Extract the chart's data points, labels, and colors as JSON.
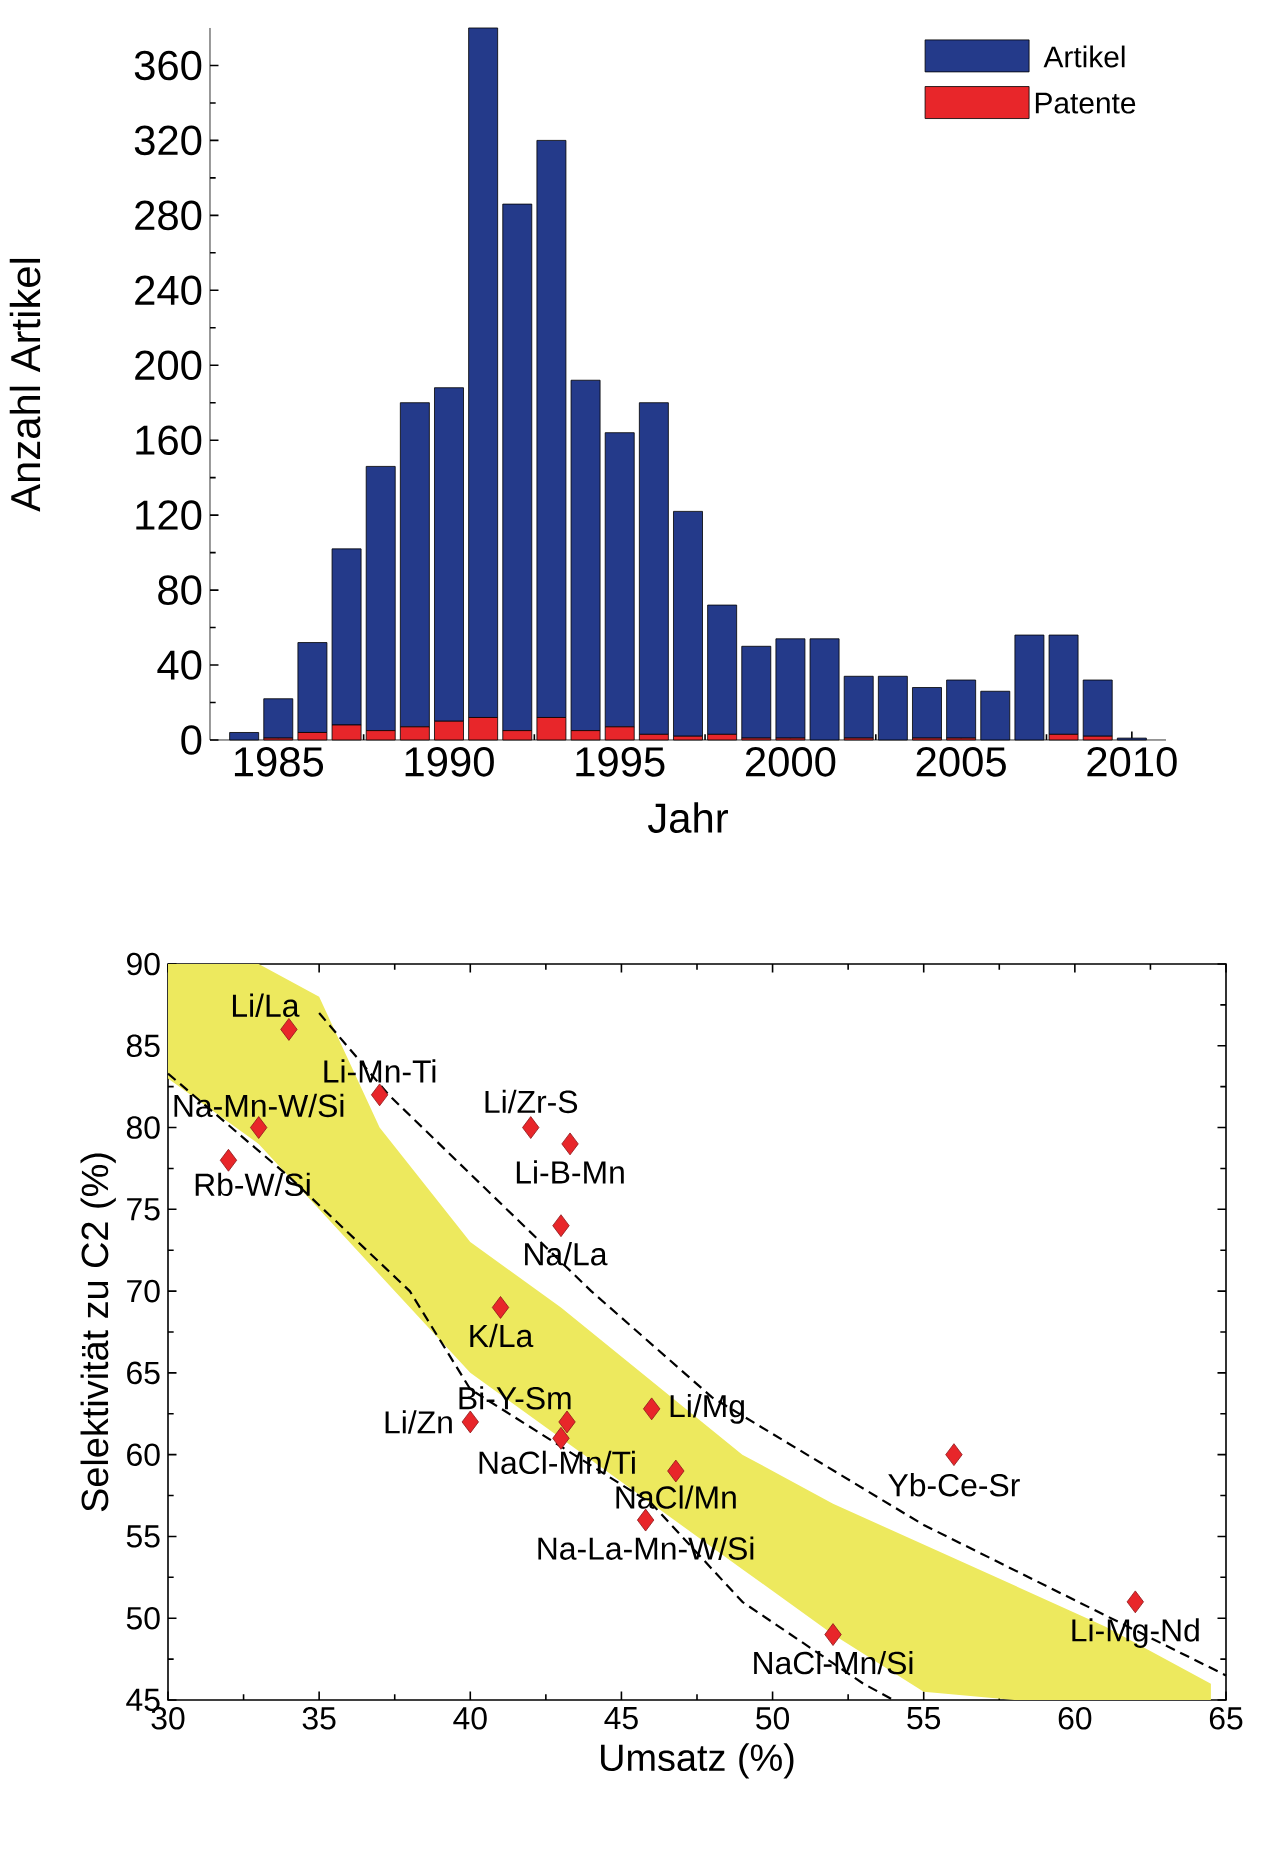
{
  "chart_data": [
    {
      "type": "bar",
      "stacked": true,
      "xlabel": "Jahr",
      "ylabel": "Anzahl Artikel",
      "legend": "top right",
      "x": [
        1984,
        1985,
        1986,
        1987,
        1988,
        1989,
        1990,
        1991,
        1992,
        1993,
        1994,
        1995,
        1996,
        1997,
        1998,
        1999,
        2000,
        2001,
        2002,
        2003,
        2004,
        2005,
        2006,
        2007,
        2008,
        2009,
        2010
      ],
      "xlim": [
        1983,
        2011
      ],
      "ylim": [
        0,
        380
      ],
      "xticks": [
        1985,
        1990,
        1995,
        2000,
        2005,
        2010
      ],
      "yticks": [
        0,
        40,
        80,
        120,
        160,
        200,
        240,
        280,
        320,
        360
      ],
      "series": [
        {
          "name": "Patente",
          "color": "#e8262a",
          "values": [
            0,
            1,
            4,
            8,
            5,
            7,
            10,
            12,
            5,
            12,
            5,
            7,
            3,
            2,
            3,
            1,
            1,
            0,
            1,
            0,
            1,
            1,
            0,
            0,
            3,
            2,
            0
          ]
        },
        {
          "name": "Artikel",
          "color": "#243a8a",
          "values": [
            4,
            21,
            48,
            94,
            141,
            173,
            178,
            368,
            281,
            308,
            187,
            157,
            177,
            120,
            69,
            49,
            53,
            54,
            33,
            34,
            27,
            31,
            26,
            56,
            53,
            30,
            1
          ]
        }
      ]
    },
    {
      "type": "scatter",
      "xlabel": "Umsatz (%)",
      "ylabel": "Selektivität zu C2 (%)",
      "xlim": [
        30,
        65
      ],
      "ylim": [
        45,
        90
      ],
      "xticks": [
        30,
        35,
        40,
        45,
        50,
        55,
        60,
        65
      ],
      "yticks": [
        45,
        50,
        55,
        60,
        65,
        70,
        75,
        80,
        85,
        90
      ],
      "series": [
        {
          "type": "area",
          "color": "#ede95e",
          "x": [
            30,
            33,
            35,
            37,
            40,
            43,
            46,
            49,
            52,
            55,
            58,
            61,
            64.5
          ],
          "values": [
            null,
            null,
            null,
            null,
            null,
            null,
            null,
            null,
            null,
            null,
            null,
            null,
            null
          ],
          "upper": [
            90,
            90,
            88,
            80,
            73,
            69,
            64.5,
            60,
            57,
            54.5,
            52,
            49.5,
            46
          ],
          "lower": [
            83,
            79,
            75,
            71,
            65,
            61,
            57,
            53,
            49,
            45.5,
            45,
            45,
            45
          ]
        },
        {
          "type": "line",
          "color": "#000000",
          "line_style": "dashed",
          "x": [
            35,
            37.3,
            44,
            48,
            55,
            65
          ],
          "values": [
            87,
            82,
            70,
            63.5,
            55.7,
            46.5
          ]
        },
        {
          "type": "line",
          "color": "#000000",
          "line_style": "dashed",
          "x": [
            30,
            34,
            38,
            40,
            46,
            49,
            53,
            54
          ],
          "values": [
            83.3,
            77,
            70,
            64,
            57,
            51,
            46,
            45
          ]
        },
        {
          "type": "scatter",
          "color": "#e8262a",
          "marker": "diamond",
          "x": [
            34,
            37,
            33,
            32,
            42,
            43.3,
            43,
            41,
            40,
            43.2,
            43,
            46,
            46.8,
            45.8,
            56,
            62,
            52
          ],
          "values": [
            86,
            82,
            80,
            78,
            80,
            79,
            74,
            69,
            62,
            62,
            61,
            62.8,
            59,
            56,
            60,
            51,
            49
          ]
        }
      ],
      "annotations": [
        {
          "text": "Li/La",
          "x": 34,
          "y": 86
        },
        {
          "text": "Li-Mn-Ti",
          "x": 37,
          "y": 82
        },
        {
          "text": "Na-Mn-W/Si",
          "x": 33,
          "y": 80
        },
        {
          "text": "Rb-W/Si",
          "x": 32,
          "y": 78
        },
        {
          "text": "Li/Zr-S",
          "x": 42,
          "y": 80
        },
        {
          "text": "Li-B-Mn",
          "x": 43.3,
          "y": 79
        },
        {
          "text": "Na/La",
          "x": 43,
          "y": 74
        },
        {
          "text": "K/La",
          "x": 41,
          "y": 69
        },
        {
          "text": "Li/Zn",
          "x": 40,
          "y": 62
        },
        {
          "text": "Bi-Y-Sm",
          "x": 43.2,
          "y": 62
        },
        {
          "text": "NaCl-Mn/Ti",
          "x": 43,
          "y": 61
        },
        {
          "text": "Li/Mg",
          "x": 46,
          "y": 62.8
        },
        {
          "text": "NaCl/Mn",
          "x": 46.8,
          "y": 59
        },
        {
          "text": "Na-La-Mn-W/Si",
          "x": 45.8,
          "y": 56
        },
        {
          "text": "Yb-Ce-Sr",
          "x": 56,
          "y": 60
        },
        {
          "text": "Li-Mg-Nd",
          "x": 62,
          "y": 51
        },
        {
          "text": "NaCl-Mn/Si",
          "x": 52,
          "y": 49
        }
      ]
    }
  ]
}
